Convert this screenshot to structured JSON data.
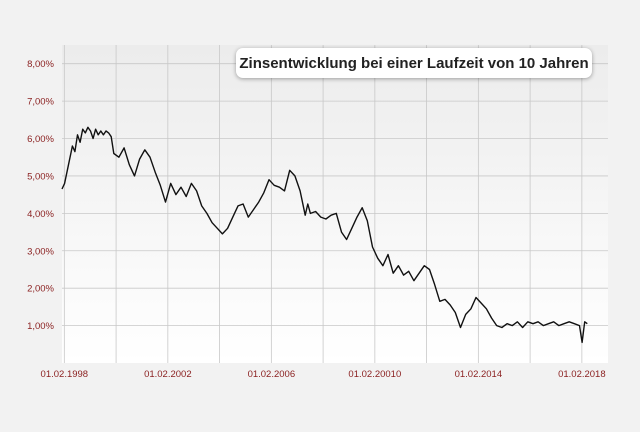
{
  "colors": {
    "background": "#f2f2f2",
    "plot_top": "#eeeeee",
    "plot_bottom": "#ffffff",
    "grid": "#c8c8c8",
    "line": "#111111",
    "tick_label": "#8a1f1f"
  },
  "chart_data": {
    "type": "line",
    "title": "Zinsentwicklung bei einer Laufzeit von 10 Jahren",
    "xlabel": "",
    "ylabel": "",
    "x_tick_labels": [
      "01.02.1998",
      "01.02.2002",
      "01.02.2006",
      "01.02.20010",
      "01.02.2014",
      "01.02.2018"
    ],
    "x_tick_years": [
      1998.09,
      2002.09,
      2006.09,
      2010.09,
      2014.09,
      2018.09
    ],
    "y_tick_labels": [
      "1,00%",
      "2,00%",
      "3,00%",
      "4,00%",
      "5,00%",
      "6,00%",
      "7,00%",
      "8,00%"
    ],
    "y_tick_values": [
      1,
      2,
      3,
      4,
      5,
      6,
      7,
      8
    ],
    "xlim": [
      1998.0,
      2019.1
    ],
    "ylim": [
      0.0,
      8.5
    ],
    "grid": true,
    "legend": "none",
    "series": [
      {
        "x": [
          1998.0,
          1998.1,
          1998.25,
          1998.4,
          1998.5,
          1998.6,
          1998.7,
          1998.8,
          1998.9,
          1999.0,
          1999.1,
          1999.2,
          1999.3,
          1999.4,
          1999.5,
          1999.6,
          1999.7,
          1999.8,
          1999.9,
          2000.0,
          2000.2,
          2000.4,
          2000.6,
          2000.8,
          2001.0,
          2001.2,
          2001.4,
          2001.6,
          2001.8,
          2002.0,
          2002.2,
          2002.4,
          2002.6,
          2002.8,
          2003.0,
          2003.2,
          2003.4,
          2003.6,
          2003.8,
          2004.0,
          2004.2,
          2004.4,
          2004.6,
          2004.8,
          2005.0,
          2005.2,
          2005.4,
          2005.6,
          2005.8,
          2006.0,
          2006.2,
          2006.4,
          2006.6,
          2006.8,
          2007.0,
          2007.2,
          2007.4,
          2007.5,
          2007.6,
          2007.8,
          2008.0,
          2008.2,
          2008.4,
          2008.6,
          2008.8,
          2009.0,
          2009.2,
          2009.4,
          2009.6,
          2009.8,
          2010.0,
          2010.2,
          2010.4,
          2010.6,
          2010.8,
          2011.0,
          2011.2,
          2011.4,
          2011.6,
          2011.8,
          2012.0,
          2012.2,
          2012.4,
          2012.6,
          2012.8,
          2013.0,
          2013.2,
          2013.4,
          2013.6,
          2013.8,
          2014.0,
          2014.2,
          2014.4,
          2014.6,
          2014.8,
          2015.0,
          2015.2,
          2015.4,
          2015.6,
          2015.8,
          2016.0,
          2016.2,
          2016.4,
          2016.6,
          2016.8,
          2017.0,
          2017.2,
          2017.4,
          2017.6,
          2017.8,
          2018.0,
          2018.1,
          2018.2,
          2018.3
        ],
        "values": [
          4.65,
          4.8,
          5.3,
          5.8,
          5.65,
          6.1,
          5.9,
          6.25,
          6.15,
          6.3,
          6.2,
          6.0,
          6.25,
          6.1,
          6.2,
          6.1,
          6.2,
          6.15,
          6.05,
          5.6,
          5.5,
          5.75,
          5.3,
          5.0,
          5.45,
          5.7,
          5.5,
          5.1,
          4.75,
          4.3,
          4.8,
          4.5,
          4.7,
          4.45,
          4.8,
          4.6,
          4.2,
          4.0,
          3.75,
          3.6,
          3.45,
          3.6,
          3.9,
          4.2,
          4.25,
          3.9,
          4.1,
          4.3,
          4.55,
          4.9,
          4.75,
          4.7,
          4.6,
          5.15,
          5.0,
          4.6,
          3.95,
          4.25,
          4.0,
          4.05,
          3.9,
          3.85,
          3.95,
          4.0,
          3.5,
          3.3,
          3.6,
          3.9,
          4.15,
          3.8,
          3.1,
          2.8,
          2.6,
          2.9,
          2.4,
          2.6,
          2.35,
          2.45,
          2.2,
          2.4,
          2.6,
          2.5,
          2.1,
          1.65,
          1.7,
          1.55,
          1.35,
          0.95,
          1.3,
          1.45,
          1.75,
          1.6,
          1.45,
          1.2,
          1.0,
          0.95,
          1.05,
          1.0,
          1.1,
          0.95,
          1.1,
          1.05,
          1.1,
          1.0,
          1.05,
          1.1,
          1.0,
          1.05,
          1.1,
          1.05,
          1.0,
          0.55,
          1.1,
          1.05
        ]
      }
    ]
  }
}
